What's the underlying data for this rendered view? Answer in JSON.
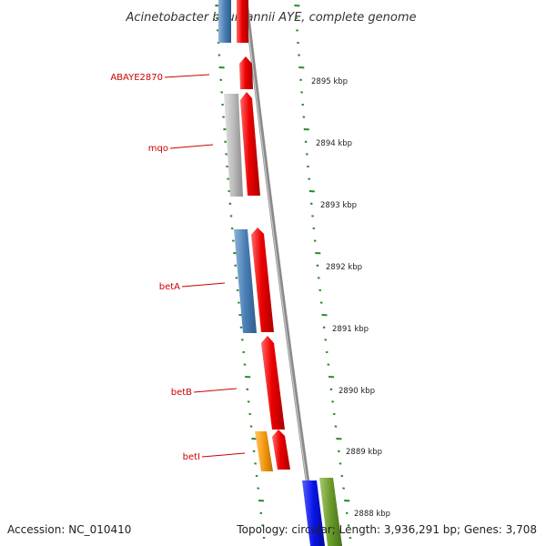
{
  "title": "Acinetobacter baumannii AYE, complete genome",
  "accession": "Accession: NC_010410",
  "summary": "Topology: circular; Length: 3,936,291 bp; Genes: 3,708",
  "genes": [
    {
      "name": "ABAYE2870"
    },
    {
      "name": "mqo"
    },
    {
      "name": "betA"
    },
    {
      "name": "betB"
    },
    {
      "name": "betI"
    }
  ],
  "ticks": [
    {
      "label": "2895 kbp"
    },
    {
      "label": "2894 kbp"
    },
    {
      "label": "2893 kbp"
    },
    {
      "label": "2892 kbp"
    },
    {
      "label": "2891 kbp"
    },
    {
      "label": "2890 kbp"
    },
    {
      "label": "2889 kbp"
    },
    {
      "label": "2888 kbp"
    }
  ],
  "colors": {
    "red": "#ee0000",
    "steelblue": "#4a7fb5",
    "gray": "#bbbbbb",
    "orange": "#f59a10",
    "blue": "#0a14e6",
    "olive": "#6a9a2a",
    "tick_green": "#2a8a2a",
    "backbone": "#8a8a8a",
    "label_red": "#cc0000"
  }
}
